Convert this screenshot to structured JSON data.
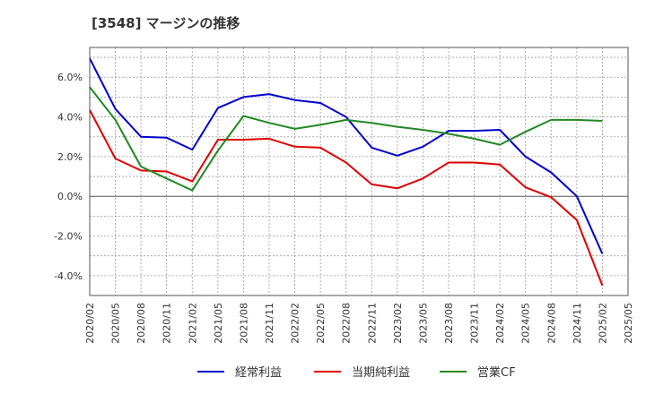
{
  "chart_data": {
    "type": "line",
    "title": "[3548]  マージンの推移",
    "x": [
      "2020/02",
      "2020/05",
      "2020/08",
      "2020/11",
      "2021/02",
      "2021/05",
      "2021/08",
      "2021/11",
      "2022/02",
      "2022/05",
      "2022/08",
      "2022/11",
      "2023/02",
      "2023/05",
      "2023/08",
      "2023/11",
      "2024/02",
      "2024/05",
      "2024/08",
      "2024/11",
      "2025/02"
    ],
    "x_ticks": [
      "2020/02",
      "2020/05",
      "2020/08",
      "2020/11",
      "2021/02",
      "2021/05",
      "2021/08",
      "2021/11",
      "2022/02",
      "2022/05",
      "2022/08",
      "2022/11",
      "2023/02",
      "2023/05",
      "2023/08",
      "2023/11",
      "2024/02",
      "2024/05",
      "2024/08",
      "2024/11",
      "2025/02",
      "2025/05"
    ],
    "y_ticks": [
      "-4.0%",
      "-2.0%",
      "0.0%",
      "2.0%",
      "4.0%",
      "6.0%"
    ],
    "y_tick_values": [
      -4,
      -2,
      0,
      2,
      4,
      6
    ],
    "ylim": [
      -5.0,
      7.5
    ],
    "xlabel": "",
    "ylabel": "",
    "grid": true,
    "legend_position": "bottom",
    "series": [
      {
        "name": "経常利益",
        "color": "#0000cc",
        "values": [
          6.95,
          4.4,
          3.0,
          2.95,
          2.35,
          4.45,
          5.0,
          5.15,
          4.85,
          4.7,
          4.0,
          2.45,
          2.05,
          2.5,
          3.3,
          3.3,
          3.35,
          2.0,
          1.2,
          0.0,
          -2.9
        ]
      },
      {
        "name": "当期純利益",
        "color": "#dd0000",
        "values": [
          4.35,
          1.9,
          1.3,
          1.25,
          0.75,
          2.85,
          2.85,
          2.9,
          2.5,
          2.45,
          1.7,
          0.6,
          0.4,
          0.9,
          1.7,
          1.7,
          1.6,
          0.45,
          -0.05,
          -1.2,
          -4.5
        ]
      },
      {
        "name": "営業CF",
        "color": "#228822",
        "values": [
          5.5,
          3.85,
          1.5,
          0.9,
          0.3,
          2.3,
          4.05,
          3.7,
          3.4,
          3.6,
          3.85,
          3.7,
          3.5,
          3.35,
          3.15,
          2.9,
          2.6,
          3.25,
          3.85,
          3.85,
          3.8
        ]
      }
    ]
  }
}
